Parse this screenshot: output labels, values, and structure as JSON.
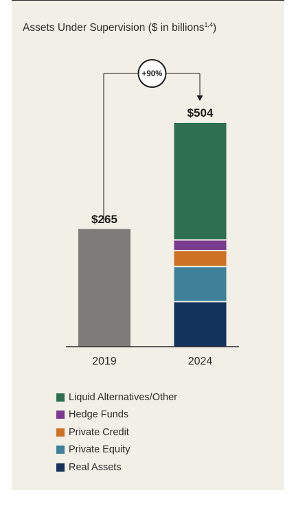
{
  "chart_data": {
    "type": "bar",
    "stacked": true,
    "title": "Assets Under Supervision ($ in billions",
    "title_footnote": "1,4",
    "title_close": ")",
    "categories": [
      "2019",
      "2024"
    ],
    "totals": [
      {
        "category": "2019",
        "value": 265,
        "label": "$265"
      },
      {
        "category": "2024",
        "value": 504,
        "label": "$504"
      }
    ],
    "series_2019": {
      "value": 265,
      "color": "#7d7c78"
    },
    "series": [
      {
        "name": "Real Assets",
        "color": "#13325c",
        "values": [
          null,
          103
        ]
      },
      {
        "name": "Private Equity",
        "color": "#3e8198",
        "values": [
          null,
          79
        ]
      },
      {
        "name": "Private Credit",
        "color": "#cd7224",
        "values": [
          null,
          36
        ]
      },
      {
        "name": "Hedge Funds",
        "color": "#7a3b8e",
        "values": [
          null,
          24
        ]
      },
      {
        "name": "Liquid Alternatives/Other",
        "color": "#2e6e51",
        "values": [
          null,
          262
        ]
      }
    ],
    "growth_annotation": "+90%",
    "ylim": [
      0,
      504
    ],
    "grid": false,
    "legend_position": "bottom"
  }
}
